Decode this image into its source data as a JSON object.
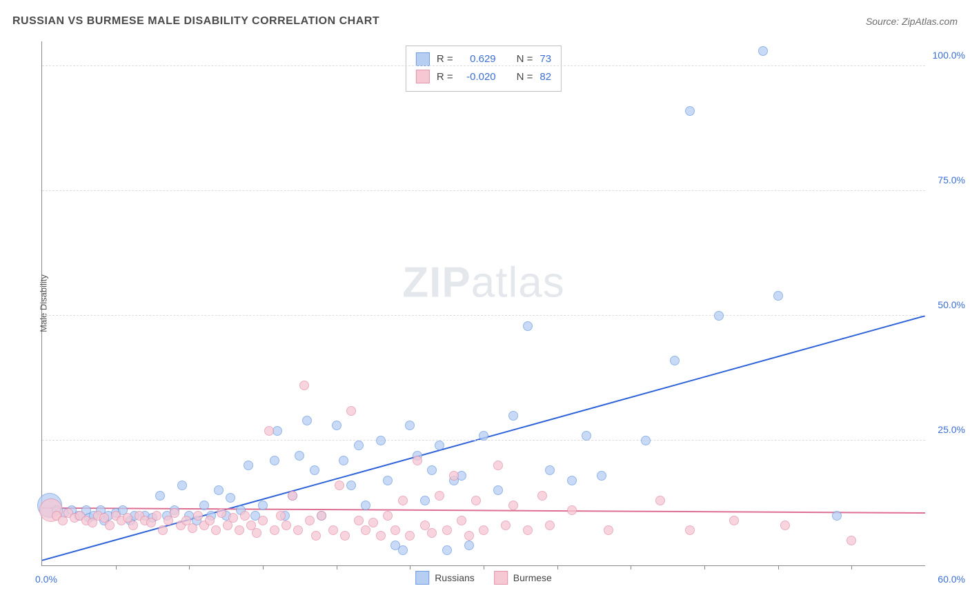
{
  "header": {
    "title": "RUSSIAN VS BURMESE MALE DISABILITY CORRELATION CHART",
    "source": "Source: ZipAtlas.com"
  },
  "watermark": {
    "zip": "ZIP",
    "atlas": "atlas"
  },
  "chart": {
    "type": "scatter",
    "y_axis_title": "Male Disability",
    "background_color": "#ffffff",
    "grid_color": "#dddddd",
    "axis_color": "#888888",
    "tick_label_color": "#3b6fd6",
    "xlim": [
      0,
      60
    ],
    "ylim": [
      0,
      105
    ],
    "x_origin_label": "0.0%",
    "x_end_label": "60.0%",
    "x_minor_ticks": [
      5,
      10,
      15,
      20,
      25,
      30,
      35,
      40,
      45,
      50,
      55
    ],
    "y_ticks": [
      {
        "v": 25,
        "label": "25.0%"
      },
      {
        "v": 50,
        "label": "50.0%"
      },
      {
        "v": 75,
        "label": "75.0%"
      },
      {
        "v": 100,
        "label": "100.0%"
      }
    ],
    "series": [
      {
        "name": "Russians",
        "fill": "#b6cef2",
        "stroke": "#6f9de3",
        "trend_color": "#2e62d9",
        "trend_width": 2,
        "trend": {
          "x1": 0,
          "y1": 1,
          "x2": 60,
          "y2": 50
        },
        "stats": {
          "r_label": "R =",
          "r": "0.629",
          "n_label": "N =",
          "n": "73"
        },
        "marker_r": 7,
        "points": [
          {
            "x": 0.5,
            "y": 12,
            "r": 18
          },
          {
            "x": 1,
            "y": 11
          },
          {
            "x": 1.5,
            "y": 10.5
          },
          {
            "x": 2,
            "y": 11
          },
          {
            "x": 2.5,
            "y": 10
          },
          {
            "x": 3,
            "y": 11
          },
          {
            "x": 3.2,
            "y": 9.5
          },
          {
            "x": 3.5,
            "y": 10
          },
          {
            "x": 4,
            "y": 11
          },
          {
            "x": 4.2,
            "y": 9
          },
          {
            "x": 4.5,
            "y": 10
          },
          {
            "x": 5,
            "y": 10.5
          },
          {
            "x": 5.5,
            "y": 11
          },
          {
            "x": 6,
            "y": 9
          },
          {
            "x": 6.3,
            "y": 10
          },
          {
            "x": 7,
            "y": 10
          },
          {
            "x": 7.5,
            "y": 9.5
          },
          {
            "x": 8,
            "y": 14
          },
          {
            "x": 8.5,
            "y": 10
          },
          {
            "x": 9,
            "y": 11
          },
          {
            "x": 9.5,
            "y": 16
          },
          {
            "x": 10,
            "y": 10
          },
          {
            "x": 10.5,
            "y": 9
          },
          {
            "x": 11,
            "y": 12
          },
          {
            "x": 11.5,
            "y": 10
          },
          {
            "x": 12,
            "y": 15
          },
          {
            "x": 12.5,
            "y": 10
          },
          {
            "x": 12.8,
            "y": 13.5
          },
          {
            "x": 13.5,
            "y": 11
          },
          {
            "x": 14,
            "y": 20
          },
          {
            "x": 14.5,
            "y": 10
          },
          {
            "x": 15,
            "y": 12
          },
          {
            "x": 15.8,
            "y": 21
          },
          {
            "x": 16,
            "y": 27
          },
          {
            "x": 16.5,
            "y": 10
          },
          {
            "x": 17,
            "y": 14
          },
          {
            "x": 17.5,
            "y": 22
          },
          {
            "x": 18,
            "y": 29
          },
          {
            "x": 18.5,
            "y": 19
          },
          {
            "x": 19,
            "y": 10
          },
          {
            "x": 20,
            "y": 28
          },
          {
            "x": 20.5,
            "y": 21
          },
          {
            "x": 21,
            "y": 16
          },
          {
            "x": 21.5,
            "y": 24
          },
          {
            "x": 22,
            "y": 12
          },
          {
            "x": 23,
            "y": 25
          },
          {
            "x": 23.5,
            "y": 17
          },
          {
            "x": 24,
            "y": 4
          },
          {
            "x": 24.5,
            "y": 3
          },
          {
            "x": 25,
            "y": 28
          },
          {
            "x": 25.5,
            "y": 22
          },
          {
            "x": 26,
            "y": 13
          },
          {
            "x": 26.5,
            "y": 19
          },
          {
            "x": 27,
            "y": 24
          },
          {
            "x": 27.5,
            "y": 3
          },
          {
            "x": 28,
            "y": 17
          },
          {
            "x": 28.5,
            "y": 18
          },
          {
            "x": 29,
            "y": 4
          },
          {
            "x": 30,
            "y": 26
          },
          {
            "x": 31,
            "y": 15
          },
          {
            "x": 32,
            "y": 30
          },
          {
            "x": 33,
            "y": 48
          },
          {
            "x": 34.5,
            "y": 19
          },
          {
            "x": 36,
            "y": 17
          },
          {
            "x": 37,
            "y": 26
          },
          {
            "x": 38,
            "y": 18
          },
          {
            "x": 41,
            "y": 25
          },
          {
            "x": 43,
            "y": 41
          },
          {
            "x": 44,
            "y": 91
          },
          {
            "x": 46,
            "y": 50
          },
          {
            "x": 49,
            "y": 103
          },
          {
            "x": 50,
            "y": 54
          },
          {
            "x": 54,
            "y": 10
          }
        ]
      },
      {
        "name": "Burmese",
        "fill": "#f6c8d4",
        "stroke": "#e393ab",
        "trend_color": "#de6e92",
        "trend_width": 2,
        "trend": {
          "x1": 0,
          "y1": 11.5,
          "x2": 60,
          "y2": 10.5
        },
        "stats": {
          "r_label": "R =",
          "r": "-0.020",
          "n_label": "N =",
          "n": "82"
        },
        "marker_r": 7,
        "points": [
          {
            "x": 0.6,
            "y": 11,
            "r": 17
          },
          {
            "x": 1,
            "y": 10
          },
          {
            "x": 1.4,
            "y": 9
          },
          {
            "x": 1.8,
            "y": 10.5
          },
          {
            "x": 2.2,
            "y": 9.5
          },
          {
            "x": 2.6,
            "y": 10
          },
          {
            "x": 3,
            "y": 9
          },
          {
            "x": 3.4,
            "y": 8.5
          },
          {
            "x": 3.8,
            "y": 10
          },
          {
            "x": 4.2,
            "y": 9.5
          },
          {
            "x": 4.6,
            "y": 8
          },
          {
            "x": 5,
            "y": 10
          },
          {
            "x": 5.4,
            "y": 9
          },
          {
            "x": 5.8,
            "y": 9.5
          },
          {
            "x": 6.2,
            "y": 8
          },
          {
            "x": 6.6,
            "y": 10
          },
          {
            "x": 7,
            "y": 9
          },
          {
            "x": 7.4,
            "y": 8.5
          },
          {
            "x": 7.8,
            "y": 10
          },
          {
            "x": 8.2,
            "y": 7
          },
          {
            "x": 8.6,
            "y": 9
          },
          {
            "x": 9,
            "y": 10.5
          },
          {
            "x": 9.4,
            "y": 8
          },
          {
            "x": 9.8,
            "y": 9
          },
          {
            "x": 10.2,
            "y": 7.5
          },
          {
            "x": 10.6,
            "y": 10
          },
          {
            "x": 11,
            "y": 8
          },
          {
            "x": 11.4,
            "y": 9
          },
          {
            "x": 11.8,
            "y": 7
          },
          {
            "x": 12.2,
            "y": 10.5
          },
          {
            "x": 12.6,
            "y": 8
          },
          {
            "x": 13,
            "y": 9.5
          },
          {
            "x": 13.4,
            "y": 7
          },
          {
            "x": 13.8,
            "y": 10
          },
          {
            "x": 14.2,
            "y": 8
          },
          {
            "x": 14.6,
            "y": 6.5
          },
          {
            "x": 15,
            "y": 9
          },
          {
            "x": 15.4,
            "y": 27
          },
          {
            "x": 15.8,
            "y": 7
          },
          {
            "x": 16.2,
            "y": 10
          },
          {
            "x": 16.6,
            "y": 8
          },
          {
            "x": 17,
            "y": 14
          },
          {
            "x": 17.4,
            "y": 7
          },
          {
            "x": 17.8,
            "y": 36
          },
          {
            "x": 18.2,
            "y": 9
          },
          {
            "x": 18.6,
            "y": 6
          },
          {
            "x": 19,
            "y": 10
          },
          {
            "x": 19.8,
            "y": 7
          },
          {
            "x": 20.2,
            "y": 16
          },
          {
            "x": 20.6,
            "y": 6
          },
          {
            "x": 21,
            "y": 31
          },
          {
            "x": 21.5,
            "y": 9
          },
          {
            "x": 22,
            "y": 7
          },
          {
            "x": 22.5,
            "y": 8.5
          },
          {
            "x": 23,
            "y": 6
          },
          {
            "x": 23.5,
            "y": 10
          },
          {
            "x": 24,
            "y": 7
          },
          {
            "x": 24.5,
            "y": 13
          },
          {
            "x": 25,
            "y": 6
          },
          {
            "x": 25.5,
            "y": 21
          },
          {
            "x": 26,
            "y": 8
          },
          {
            "x": 26.5,
            "y": 6.5
          },
          {
            "x": 27,
            "y": 14
          },
          {
            "x": 27.5,
            "y": 7
          },
          {
            "x": 28,
            "y": 18
          },
          {
            "x": 28.5,
            "y": 9
          },
          {
            "x": 29,
            "y": 6
          },
          {
            "x": 29.5,
            "y": 13
          },
          {
            "x": 30,
            "y": 7
          },
          {
            "x": 31,
            "y": 20
          },
          {
            "x": 31.5,
            "y": 8
          },
          {
            "x": 32,
            "y": 12
          },
          {
            "x": 33,
            "y": 7
          },
          {
            "x": 34,
            "y": 14
          },
          {
            "x": 34.5,
            "y": 8
          },
          {
            "x": 36,
            "y": 11
          },
          {
            "x": 38.5,
            "y": 7
          },
          {
            "x": 42,
            "y": 13
          },
          {
            "x": 44,
            "y": 7
          },
          {
            "x": 47,
            "y": 9
          },
          {
            "x": 50.5,
            "y": 8
          },
          {
            "x": 55,
            "y": 5
          }
        ]
      }
    ]
  },
  "bottom_legend": [
    {
      "label": "Russians",
      "fill": "#b6cef2",
      "stroke": "#6f9de3"
    },
    {
      "label": "Burmese",
      "fill": "#f6c8d4",
      "stroke": "#e393ab"
    }
  ]
}
